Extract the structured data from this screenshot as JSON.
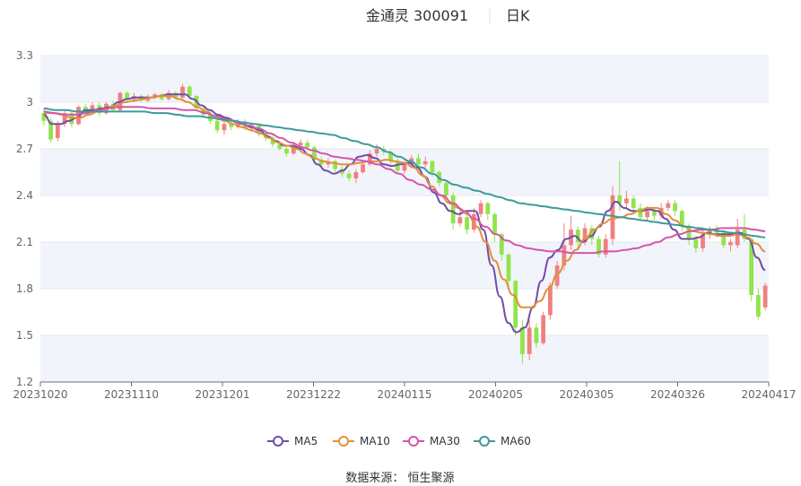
{
  "header": {
    "stock": "金通灵 300091",
    "period": "日K"
  },
  "footer": {
    "source": "数据来源： 恒生聚源"
  },
  "colors": {
    "up": "#f08080",
    "down": "#91e44a",
    "grid_band": "#f2f4fb",
    "ma5": "#6f4fa8",
    "ma10": "#e2913a",
    "ma30": "#d356ab",
    "ma60": "#3e9a9a"
  },
  "chart_data": {
    "type": "candlestick",
    "ylim": [
      1.2,
      3.3
    ],
    "yticks": [
      "1.2",
      "1.5",
      "1.8",
      "2.1",
      "2.4",
      "2.7",
      "3",
      "3.3"
    ],
    "xtick_labels": [
      "20231020",
      "20231110",
      "20231201",
      "20231222",
      "20240115",
      "20240205",
      "20240305",
      "20240326",
      "20240417"
    ],
    "legend": [
      "MA5",
      "MA10",
      "MA30",
      "MA60"
    ],
    "candles": [
      [
        2.93,
        2.88,
        2.96,
        2.85
      ],
      [
        2.88,
        2.76,
        2.9,
        2.74
      ],
      [
        2.77,
        2.86,
        2.88,
        2.75
      ],
      [
        2.86,
        2.93,
        2.95,
        2.84
      ],
      [
        2.93,
        2.86,
        2.95,
        2.84
      ],
      [
        2.86,
        2.97,
        2.98,
        2.85
      ],
      [
        2.97,
        2.94,
        2.99,
        2.92
      ],
      [
        2.94,
        2.98,
        3.0,
        2.93
      ],
      [
        2.98,
        2.93,
        3.0,
        2.91
      ],
      [
        2.93,
        2.99,
        3.0,
        2.92
      ],
      [
        2.99,
        2.95,
        3.01,
        2.94
      ],
      [
        2.95,
        3.06,
        3.07,
        2.94
      ],
      [
        3.06,
        3.02,
        3.07,
        3.0
      ],
      [
        3.02,
        3.04,
        3.06,
        3.0
      ],
      [
        3.04,
        3.01,
        3.05,
        3.0
      ],
      [
        3.01,
        3.03,
        3.05,
        3.0
      ],
      [
        3.03,
        3.05,
        3.06,
        3.02
      ],
      [
        3.05,
        3.02,
        3.06,
        3.01
      ],
      [
        3.02,
        3.06,
        3.08,
        3.01
      ],
      [
        3.06,
        3.03,
        3.07,
        3.02
      ],
      [
        3.03,
        3.1,
        3.12,
        3.02
      ],
      [
        3.1,
        3.04,
        3.11,
        3.02
      ],
      [
        3.04,
        2.96,
        3.05,
        2.94
      ],
      [
        2.96,
        2.92,
        2.98,
        2.9
      ],
      [
        2.92,
        2.88,
        2.94,
        2.86
      ],
      [
        2.88,
        2.82,
        2.9,
        2.8
      ],
      [
        2.82,
        2.86,
        2.88,
        2.79
      ],
      [
        2.86,
        2.84,
        2.9,
        2.82
      ],
      [
        2.84,
        2.87,
        2.89,
        2.83
      ],
      [
        2.87,
        2.83,
        2.89,
        2.82
      ],
      [
        2.83,
        2.85,
        2.87,
        2.81
      ],
      [
        2.85,
        2.8,
        2.86,
        2.78
      ],
      [
        2.8,
        2.77,
        2.82,
        2.75
      ],
      [
        2.77,
        2.73,
        2.79,
        2.71
      ],
      [
        2.73,
        2.7,
        2.75,
        2.69
      ],
      [
        2.7,
        2.67,
        2.72,
        2.65
      ],
      [
        2.67,
        2.72,
        2.74,
        2.66
      ],
      [
        2.72,
        2.74,
        2.76,
        2.7
      ],
      [
        2.74,
        2.71,
        2.76,
        2.7
      ],
      [
        2.71,
        2.63,
        2.72,
        2.61
      ],
      [
        2.63,
        2.6,
        2.65,
        2.59
      ],
      [
        2.6,
        2.62,
        2.64,
        2.58
      ],
      [
        2.62,
        2.57,
        2.63,
        2.55
      ],
      [
        2.57,
        2.54,
        2.59,
        2.52
      ],
      [
        2.54,
        2.51,
        2.56,
        2.49
      ],
      [
        2.51,
        2.55,
        2.57,
        2.48
      ],
      [
        2.55,
        2.6,
        2.62,
        2.54
      ],
      [
        2.6,
        2.67,
        2.69,
        2.59
      ],
      [
        2.67,
        2.7,
        2.73,
        2.65
      ],
      [
        2.7,
        2.68,
        2.72,
        2.66
      ],
      [
        2.68,
        2.62,
        2.69,
        2.6
      ],
      [
        2.62,
        2.56,
        2.64,
        2.54
      ],
      [
        2.56,
        2.6,
        2.62,
        2.54
      ],
      [
        2.6,
        2.64,
        2.66,
        2.58
      ],
      [
        2.64,
        2.6,
        2.67,
        2.58
      ],
      [
        2.6,
        2.62,
        2.65,
        2.58
      ],
      [
        2.62,
        2.55,
        2.63,
        2.52
      ],
      [
        2.55,
        2.48,
        2.56,
        2.46
      ],
      [
        2.48,
        2.4,
        2.5,
        2.38
      ],
      [
        2.4,
        2.22,
        2.42,
        2.18
      ],
      [
        2.22,
        2.26,
        2.3,
        2.2
      ],
      [
        2.26,
        2.18,
        2.28,
        2.15
      ],
      [
        2.18,
        2.28,
        2.32,
        2.16
      ],
      [
        2.28,
        2.35,
        2.37,
        2.26
      ],
      [
        2.35,
        2.28,
        2.36,
        2.24
      ],
      [
        2.28,
        2.15,
        2.29,
        2.1
      ],
      [
        2.15,
        2.02,
        2.16,
        1.98
      ],
      [
        2.02,
        1.85,
        2.03,
        1.8
      ],
      [
        1.85,
        1.55,
        1.86,
        1.5
      ],
      [
        1.55,
        1.38,
        1.6,
        1.32
      ],
      [
        1.38,
        1.55,
        1.6,
        1.34
      ],
      [
        1.55,
        1.45,
        1.58,
        1.42
      ],
      [
        1.45,
        1.63,
        1.65,
        1.44
      ],
      [
        1.63,
        1.82,
        1.84,
        1.6
      ],
      [
        1.82,
        1.95,
        1.98,
        1.8
      ],
      [
        1.95,
        2.08,
        2.22,
        1.92
      ],
      [
        2.08,
        2.18,
        2.27,
        2.05
      ],
      [
        2.18,
        2.1,
        2.2,
        2.06
      ],
      [
        2.1,
        2.19,
        2.22,
        2.08
      ],
      [
        2.19,
        2.12,
        2.21,
        2.08
      ],
      [
        2.12,
        2.02,
        2.14,
        2.0
      ],
      [
        2.02,
        2.12,
        2.15,
        2.0
      ],
      [
        2.12,
        2.4,
        2.46,
        2.08
      ],
      [
        2.4,
        2.35,
        2.62,
        2.3
      ],
      [
        2.35,
        2.38,
        2.43,
        2.32
      ],
      [
        2.38,
        2.32,
        2.4,
        2.28
      ],
      [
        2.32,
        2.26,
        2.35,
        2.24
      ],
      [
        2.26,
        2.3,
        2.33,
        2.24
      ],
      [
        2.3,
        2.27,
        2.32,
        2.24
      ],
      [
        2.27,
        2.32,
        2.35,
        2.25
      ],
      [
        2.32,
        2.35,
        2.37,
        2.3
      ],
      [
        2.35,
        2.3,
        2.37,
        2.27
      ],
      [
        2.3,
        2.2,
        2.31,
        2.17
      ],
      [
        2.2,
        2.12,
        2.22,
        2.08
      ],
      [
        2.12,
        2.06,
        2.14,
        2.03
      ],
      [
        2.06,
        2.15,
        2.18,
        2.04
      ],
      [
        2.15,
        2.18,
        2.2,
        2.12
      ],
      [
        2.18,
        2.16,
        2.21,
        2.13
      ],
      [
        2.16,
        2.08,
        2.18,
        2.06
      ],
      [
        2.08,
        2.1,
        2.12,
        2.04
      ],
      [
        2.08,
        2.18,
        2.25,
        2.06
      ],
      [
        2.18,
        2.12,
        2.28,
        2.1
      ],
      [
        2.12,
        1.76,
        2.12,
        1.72
      ],
      [
        1.76,
        1.62,
        1.8,
        1.6
      ],
      [
        1.68,
        1.82,
        1.84,
        1.66
      ]
    ],
    "ma5": [
      2.92,
      2.86,
      2.86,
      2.88,
      2.9,
      2.95,
      2.95,
      2.96,
      2.97,
      3.0,
      3.02,
      3.03,
      3.03,
      3.03,
      3.04,
      3.05,
      3.05,
      3.05,
      3.02,
      2.98,
      2.95,
      2.92,
      2.9,
      2.88,
      2.86,
      2.84,
      2.82,
      2.78,
      2.75,
      2.72,
      2.72,
      2.7,
      2.66,
      2.6,
      2.56,
      2.54,
      2.56,
      2.6,
      2.65,
      2.66,
      2.64,
      2.6,
      2.59,
      2.6,
      2.61,
      2.58,
      2.52,
      2.42,
      2.35,
      2.3,
      2.28,
      2.3,
      2.3,
      2.18,
      1.95,
      1.75,
      1.58,
      1.52,
      1.55,
      1.68,
      1.85,
      2.0,
      2.05,
      2.12,
      2.14,
      2.1,
      2.14,
      2.2,
      2.3,
      2.36,
      2.32,
      2.3,
      2.3,
      2.31,
      2.3,
      2.25,
      2.18,
      2.12,
      2.12,
      2.13,
      2.16,
      2.15,
      2.15,
      2.15,
      2.16,
      2.12,
      2.0,
      1.92
    ],
    "ma10": [
      2.93,
      2.93,
      2.92,
      2.9,
      2.9,
      2.92,
      2.94,
      2.96,
      2.98,
      3.0,
      3.01,
      3.02,
      3.03,
      3.04,
      3.04,
      3.02,
      3.0,
      2.97,
      2.94,
      2.91,
      2.88,
      2.86,
      2.84,
      2.82,
      2.8,
      2.77,
      2.74,
      2.72,
      2.7,
      2.67,
      2.64,
      2.62,
      2.61,
      2.6,
      2.6,
      2.61,
      2.62,
      2.62,
      2.63,
      2.62,
      2.61,
      2.58,
      2.53,
      2.46,
      2.4,
      2.35,
      2.32,
      2.28,
      2.2,
      2.1,
      1.98,
      1.86,
      1.76,
      1.68,
      1.68,
      1.72,
      1.8,
      1.9,
      1.98,
      2.05,
      2.12,
      2.18,
      2.22,
      2.25,
      2.26,
      2.28,
      2.3,
      2.32,
      2.32,
      2.28,
      2.24,
      2.2,
      2.17,
      2.16,
      2.15,
      2.14,
      2.14,
      2.15,
      2.13,
      2.09,
      2.04
    ],
    "ma30": [
      2.94,
      2.93,
      2.92,
      2.92,
      2.93,
      2.95,
      2.96,
      2.97,
      2.97,
      2.97,
      2.96,
      2.96,
      2.96,
      2.95,
      2.95,
      2.93,
      2.91,
      2.89,
      2.87,
      2.85,
      2.83,
      2.8,
      2.77,
      2.74,
      2.71,
      2.69,
      2.67,
      2.65,
      2.64,
      2.63,
      2.62,
      2.6,
      2.57,
      2.54,
      2.5,
      2.47,
      2.44,
      2.4,
      2.35,
      2.3,
      2.25,
      2.2,
      2.15,
      2.11,
      2.08,
      2.06,
      2.05,
      2.04,
      2.04,
      2.03,
      2.03,
      2.03,
      2.04,
      2.04,
      2.05,
      2.06,
      2.08,
      2.1,
      2.13,
      2.15,
      2.17,
      2.18,
      2.18,
      2.19,
      2.19,
      2.19,
      2.18,
      2.17
    ],
    "ma60": [
      2.96,
      2.95,
      2.95,
      2.94,
      2.94,
      2.94,
      2.94,
      2.94,
      2.94,
      2.94,
      2.93,
      2.93,
      2.92,
      2.91,
      2.91,
      2.9,
      2.89,
      2.88,
      2.87,
      2.86,
      2.85,
      2.84,
      2.83,
      2.82,
      2.81,
      2.8,
      2.79,
      2.77,
      2.75,
      2.73,
      2.71,
      2.68,
      2.65,
      2.62,
      2.58,
      2.54,
      2.5,
      2.47,
      2.45,
      2.43,
      2.41,
      2.39,
      2.37,
      2.35,
      2.34,
      2.33,
      2.32,
      2.31,
      2.3,
      2.29,
      2.28,
      2.27,
      2.26,
      2.25,
      2.24,
      2.23,
      2.22,
      2.21,
      2.2,
      2.19,
      2.18,
      2.17,
      2.16,
      2.15,
      2.14,
      2.13
    ]
  }
}
